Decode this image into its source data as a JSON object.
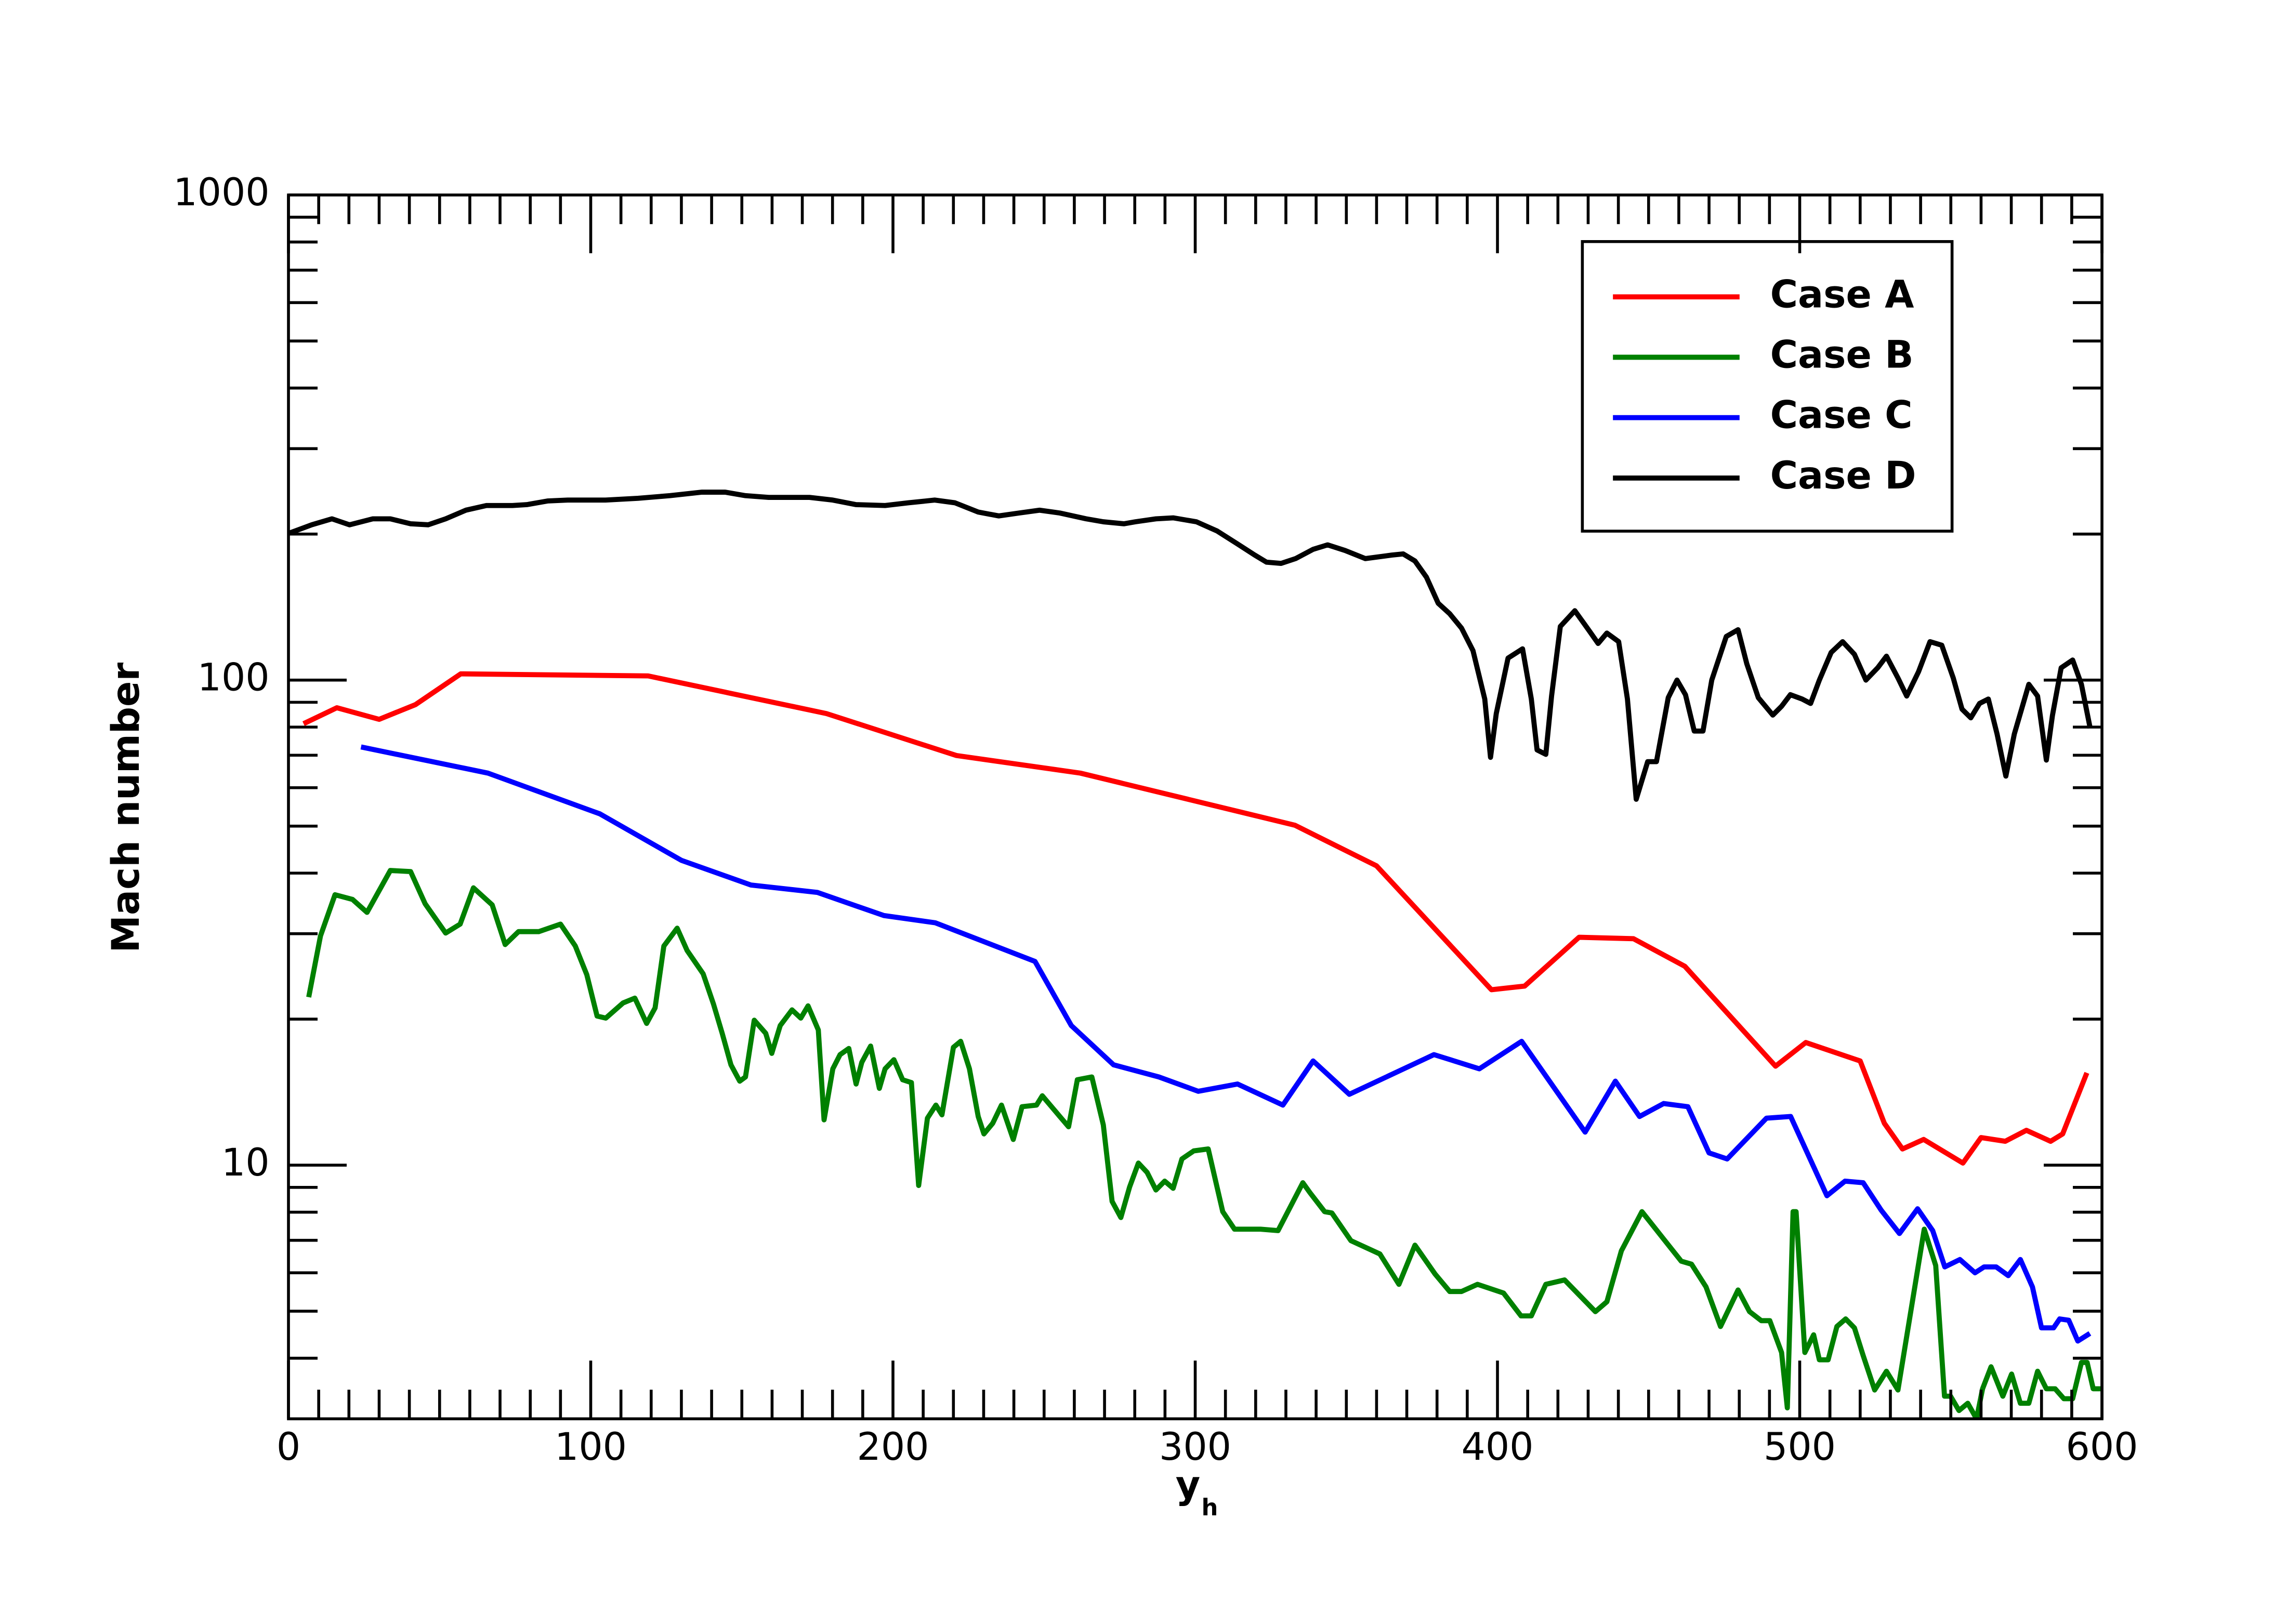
{
  "chart_data": {
    "type": "line",
    "xlabel": "y",
    "xlabel_subscript": "h",
    "ylabel": "Mach number",
    "xlim": [
      0,
      600
    ],
    "xticks": [
      0,
      100,
      200,
      300,
      400,
      500,
      600
    ],
    "xminorticks": [
      10,
      20,
      30,
      40,
      50,
      60,
      70,
      80,
      90,
      110,
      120,
      130,
      140,
      150,
      160,
      170,
      180,
      190,
      210,
      220,
      230,
      240,
      250,
      260,
      270,
      280,
      290,
      310,
      320,
      330,
      340,
      350,
      360,
      370,
      380,
      390,
      410,
      420,
      430,
      440,
      450,
      460,
      470,
      480,
      490,
      510,
      520,
      530,
      540,
      550,
      560,
      570,
      580,
      590
    ],
    "ylim": [
      3,
      1000
    ],
    "yticks": [
      10,
      100,
      1000
    ],
    "yminorticks": [
      4,
      5,
      6,
      7,
      8,
      9,
      20,
      30,
      40,
      50,
      60,
      70,
      80,
      90,
      200,
      300,
      400,
      500,
      600,
      700,
      800,
      900
    ],
    "yscale": "log",
    "grid": false,
    "legend": "upper right",
    "series": [
      {
        "name": "Case A",
        "color": "#ff0000",
        "x": [
          5,
          16,
          30,
          42,
          57,
          119,
          178,
          221,
          262,
          333,
          360,
          398,
          409,
          427,
          445,
          462,
          492,
          502,
          520,
          528,
          534,
          541,
          554,
          560,
          568,
          575,
          583,
          587,
          595
        ],
        "values": [
          81.3,
          87.7,
          83,
          89,
          103,
          102,
          85.3,
          69.9,
          64.3,
          50.2,
          41.4,
          23,
          23.4,
          29.5,
          29.3,
          25.7,
          16,
          17.9,
          16.4,
          12.2,
          10.8,
          11.3,
          10.1,
          11.4,
          11.2,
          11.8,
          11.2,
          11.6,
          15.5
        ]
      },
      {
        "name": "Case B",
        "color": "#008000",
        "x": [
          6.7,
          10.6,
          15.4,
          21.2,
          26,
          33.7,
          40.4,
          45.2,
          52,
          56.8,
          61.2,
          67.4,
          71.7,
          76.1,
          82.8,
          90,
          94.9,
          98.7,
          102.1,
          105,
          110.7,
          114.6,
          118.5,
          121.3,
          124.2,
          128.6,
          131.9,
          137.2,
          140.6,
          143.5,
          146.4,
          149.3,
          151.2,
          154.1,
          157.9,
          159.9,
          162.7,
          166.6,
          169.5,
          171.9,
          175.3,
          177.2,
          180.1,
          182.5,
          185.4,
          187.8,
          189.7,
          192.6,
          195.5,
          197.4,
          200.3,
          203.2,
          206.1,
          208.5,
          211.4,
          214.2,
          216.2,
          220,
          222.4,
          225.3,
          228.2,
          230.1,
          233,
          235.9,
          239.8,
          242.7,
          247.5,
          249.4,
          255.2,
          258.1,
          261,
          265.8,
          269.6,
          272.5,
          275.4,
          278.3,
          281.2,
          284.1,
          287,
          289.9,
          292.7,
          295.6,
          299.5,
          304.3,
          309.1,
          313,
          321.6,
          327.4,
          335.6,
          338,
          342.8,
          345.2,
          351.5,
          361.1,
          367.4,
          372.7,
          379.4,
          384.2,
          388.1,
          393.4,
          402,
          407.8,
          411.2,
          416,
          422.2,
          432.4,
          436.2,
          441,
          447.8,
          455,
          460.8,
          464.2,
          469,
          473.8,
          479.6,
          483.4,
          487.3,
          490.1,
          494,
          495.9,
          497.8,
          498.8,
          501.7,
          504.6,
          506.5,
          509.4,
          512.3,
          515.2,
          518.1,
          521,
          524.8,
          528.7,
          532.5,
          541.2,
          545,
          547.9,
          549.9,
          552.7,
          555.6,
          558.5,
          560.5,
          563.3,
          567.2,
          570.1,
          573,
          575.8,
          578.7,
          581.6,
          584.5,
          587.4,
          590.3,
          593.2,
          595.1,
          597.1,
          600
        ],
        "values": [
          22.2,
          29.7,
          36.1,
          35.3,
          33.2,
          40.5,
          40.3,
          34.6,
          30.1,
          31.4,
          37.3,
          34.4,
          28.5,
          30.3,
          30.3,
          31.4,
          28.3,
          24.7,
          20.3,
          20.1,
          21.6,
          22.1,
          19.6,
          21.1,
          28.3,
          30.8,
          27.7,
          24.8,
          21.5,
          18.7,
          16.1,
          14.9,
          15.2,
          19.9,
          18.7,
          17,
          19.4,
          20.9,
          20.1,
          21.3,
          19,
          12.4,
          15.8,
          16.9,
          17.4,
          14.7,
          16.3,
          17.6,
          14.4,
          15.8,
          16.5,
          15,
          14.8,
          9.08,
          12.5,
          13.3,
          12.7,
          17.5,
          18,
          15.8,
          12.6,
          11.6,
          12.2,
          13.3,
          11.3,
          13.2,
          13.3,
          13.9,
          12.6,
          12,
          15,
          15.2,
          12.1,
          8.42,
          7.8,
          9.02,
          10.1,
          9.66,
          8.89,
          9.27,
          8.96,
          10.3,
          10.7,
          10.8,
          8.02,
          7.38,
          7.38,
          7.33,
          9.2,
          8.77,
          8.02,
          7.97,
          6.99,
          6.56,
          5.68,
          6.84,
          5.96,
          5.49,
          5.49,
          5.68,
          5.45,
          4.89,
          4.89,
          5.68,
          5.8,
          4.99,
          5.23,
          6.66,
          8.02,
          7.04,
          6.34,
          6.25,
          5.61,
          4.65,
          5.53,
          4.99,
          4.78,
          4.78,
          4.11,
          3.16,
          8.02,
          8.02,
          4.11,
          4.47,
          3.97,
          3.97,
          4.65,
          4.82,
          4.62,
          4.05,
          3.44,
          3.76,
          3.44,
          7.38,
          6.21,
          3.34,
          3.34,
          3.12,
          3.23,
          3,
          3.46,
          3.84,
          3.34,
          3.71,
          3.23,
          3.23,
          3.76,
          3.46,
          3.46,
          3.3,
          3.3,
          3.92,
          3.92,
          3.46,
          3.46
        ]
      },
      {
        "name": "Case C",
        "color": "#0000ff",
        "x": [
          24,
          66,
          103,
          130,
          153,
          175,
          197,
          214,
          247,
          259,
          273,
          288,
          301,
          314,
          329,
          339,
          351,
          379,
          394,
          408,
          429,
          439,
          447,
          455,
          463,
          470,
          476,
          489,
          497,
          509,
          515,
          521,
          527,
          533,
          539,
          544,
          548,
          553,
          558,
          561,
          565,
          569,
          573,
          577,
          580,
          584,
          586,
          589,
          592,
          596
        ],
        "values": [
          72.8,
          64.3,
          53,
          42.5,
          37.8,
          36.5,
          32.7,
          31.6,
          26.3,
          19.4,
          16.1,
          15.2,
          14.2,
          14.7,
          13.3,
          16.4,
          14,
          16.9,
          15.8,
          18,
          11.7,
          14.9,
          12.6,
          13.4,
          13.2,
          10.6,
          10.3,
          12.5,
          12.6,
          8.65,
          9.27,
          9.2,
          8.07,
          7.23,
          8.13,
          7.33,
          6.17,
          6.39,
          6,
          6.17,
          6.17,
          5.92,
          6.39,
          5.61,
          4.62,
          4.62,
          4.82,
          4.79,
          4.34,
          4.5
        ]
      },
      {
        "name": "Case D",
        "color": "#000000",
        "x": [
          0,
          7.7,
          14.4,
          20.2,
          27.9,
          33.7,
          40.4,
          46.2,
          52,
          58.7,
          65.5,
          74.1,
          78.9,
          85.7,
          92.4,
          104.9,
          115.6,
          126.2,
          136.8,
          144.5,
          151.2,
          158.9,
          172.4,
          180.1,
          187.8,
          197.4,
          205.1,
          213.8,
          220.5,
          228.2,
          235,
          241.7,
          248.5,
          255.2,
          263.9,
          269.6,
          276.4,
          280.2,
          287,
          292.7,
          300.4,
          307.2,
          313.9,
          319.7,
          323.6,
          328.4,
          333.2,
          339,
          343.8,
          349.6,
          356.3,
          365,
          368.8,
          372.7,
          376.5,
          380.4,
          384.2,
          388.1,
          391.9,
          395.8,
          397.7,
          399.6,
          403.5,
          408.3,
          411.2,
          413.1,
          416,
          417.9,
          420.8,
          425.6,
          430.5,
          433.3,
          436.2,
          440.1,
          443,
          445.9,
          449.7,
          452.6,
          456.5,
          459.4,
          462.2,
          465.1,
          468,
          470.9,
          475.7,
          479.6,
          482.5,
          486.3,
          491.1,
          494,
          496.9,
          500.8,
          503.6,
          506.5,
          510.4,
          514.2,
          518.1,
          521.9,
          525.8,
          528.7,
          532.5,
          535.4,
          539.3,
          543.1,
          547,
          550.8,
          553.7,
          556.6,
          559.5,
          562.4,
          565.3,
          568.2,
          571,
          575.8,
          578.7,
          581.6,
          583.6,
          586.5,
          590.3,
          593.2,
          596.1
        ],
        "values": [
          200.6,
          209,
          215,
          209,
          215,
          215,
          210,
          209,
          215,
          224,
          229,
          229,
          230,
          234,
          235,
          235,
          237,
          240,
          244,
          244,
          240,
          238,
          238,
          235,
          230,
          229,
          232,
          235,
          232,
          222,
          218,
          221,
          224,
          221,
          215,
          212,
          210,
          212,
          215,
          216,
          212,
          203,
          191,
          181,
          175,
          174,
          178,
          186,
          190,
          185,
          178,
          181,
          182,
          176,
          163,
          144,
          137,
          128,
          115,
          91.4,
          69.3,
          85.3,
          111,
          116,
          91.4,
          71.8,
          70.3,
          92.7,
          129,
          139,
          126,
          119,
          125,
          120,
          91.4,
          56.8,
          67.9,
          67.9,
          92,
          100,
          93.3,
          78.5,
          78.5,
          100,
          123,
          127,
          108,
          92,
          84.7,
          88.3,
          93.3,
          91.4,
          89.5,
          100,
          114,
          120,
          113,
          100,
          106,
          112,
          101,
          92.7,
          104,
          120,
          118,
          101,
          87.1,
          83.6,
          89.5,
          91.4,
          77.4,
          63.4,
          77.4,
          98,
          92.7,
          68.4,
          84.4,
          106,
          110,
          98,
          79.6
        ]
      }
    ]
  }
}
